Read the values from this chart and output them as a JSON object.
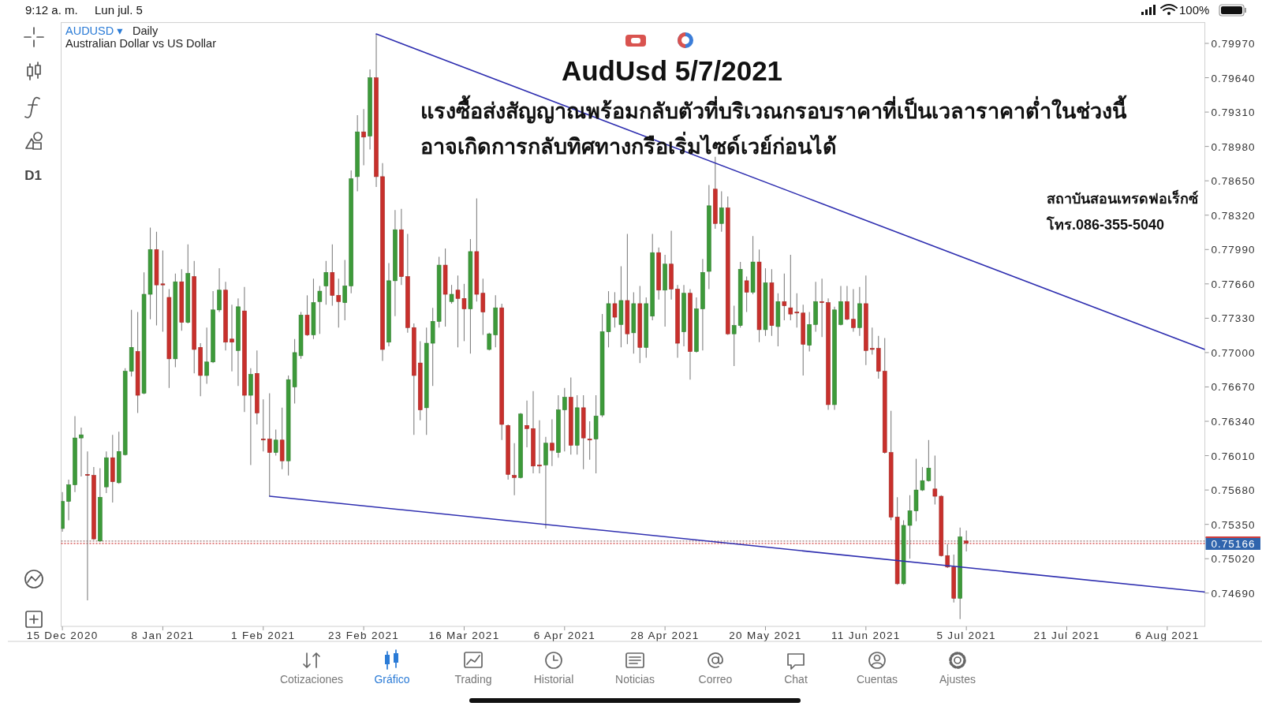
{
  "chart_data": {
    "type": "candlestick",
    "title": "AudUsd 5/7/2021",
    "subtitle": "แรงซื้อส่งสัญญาณพร้อมกลับตัวที่บริเวณกรอบราคาที่เป็นเวลาราคาต่ำในช่วงนี้\nอาจเกิดการกลับทิศทางกรือเริ่มไซด์เวย์ก่อนได้",
    "categories": [
      "15 Dec 2020",
      null,
      null,
      null,
      null,
      null,
      null,
      null,
      null,
      null,
      null,
      null,
      null,
      null,
      null,
      null,
      "8 Jan 2021",
      null,
      null,
      null,
      null,
      null,
      null,
      null,
      null,
      null,
      null,
      null,
      null,
      null,
      null,
      null,
      "1 Feb 2021",
      null,
      null,
      null,
      null,
      null,
      null,
      null,
      null,
      null,
      null,
      null,
      null,
      null,
      null,
      null,
      "23 Feb 2021",
      null,
      null,
      null,
      null,
      null,
      null,
      null,
      null,
      null,
      null,
      null,
      null,
      null,
      null,
      null,
      "16 Mar 2021",
      null,
      null,
      null,
      null,
      null,
      null,
      null,
      null,
      null,
      null,
      null,
      null,
      null,
      null,
      null,
      "6 Apr 2021",
      null,
      null,
      null,
      null,
      null,
      null,
      null,
      null,
      null,
      null,
      null,
      null,
      null,
      null,
      null,
      "28 Apr 2021",
      null,
      null,
      null,
      null,
      null,
      null,
      null,
      null,
      null,
      null,
      null,
      null,
      null,
      null,
      null,
      "20 May 2021",
      null,
      null,
      null,
      null,
      null,
      null,
      null,
      null,
      null,
      null,
      null,
      null,
      null,
      null,
      null,
      "11 Jun 2021",
      null,
      null,
      null,
      null,
      null,
      null,
      null,
      null,
      null,
      null,
      null,
      null,
      null,
      null,
      null,
      "5 Jul 2021",
      null,
      null,
      null,
      null,
      null,
      null,
      null,
      null,
      null,
      null,
      null,
      null,
      null,
      null,
      null,
      "21 Jul 2021",
      null,
      null,
      null,
      null,
      null,
      null,
      null,
      null,
      null,
      null,
      null,
      null,
      null,
      null,
      null,
      "6 Aug 2021",
      null,
      null,
      null,
      null,
      null,
      null
    ],
    "ohlc": [
      [
        0.7531,
        0.7566,
        0.7528,
        0.7557
      ],
      [
        0.7557,
        0.7578,
        0.7539,
        0.7573
      ],
      [
        0.7573,
        0.7639,
        0.7566,
        0.7618
      ],
      [
        0.7618,
        0.7628,
        0.7581,
        0.7621
      ],
      [
        0.7583,
        0.7605,
        0.7462,
        0.7582
      ],
      [
        0.7582,
        0.759,
        0.752,
        0.7521
      ],
      [
        0.7519,
        0.7589,
        0.7518,
        0.7561
      ],
      [
        0.7571,
        0.7605,
        0.7565,
        0.7599
      ],
      [
        0.7599,
        0.7621,
        0.7556,
        0.7576
      ],
      [
        0.7575,
        0.7624,
        0.7574,
        0.7605
      ],
      [
        0.7602,
        0.7685,
        0.7601,
        0.7682
      ],
      [
        0.7682,
        0.7741,
        0.7677,
        0.7705
      ],
      [
        0.7701,
        0.7739,
        0.7642,
        0.7659
      ],
      [
        0.7661,
        0.7777,
        0.766,
        0.7756
      ],
      [
        0.7756,
        0.782,
        0.7732,
        0.7799
      ],
      [
        0.7799,
        0.7816,
        0.7726,
        0.7765
      ],
      [
        0.7766,
        0.7798,
        0.772,
        0.7765
      ],
      [
        0.7753,
        0.7761,
        0.7666,
        0.7694
      ],
      [
        0.7694,
        0.7776,
        0.7686,
        0.7768
      ],
      [
        0.7768,
        0.778,
        0.7721,
        0.7729
      ],
      [
        0.7729,
        0.7804,
        0.7728,
        0.7776
      ],
      [
        0.7773,
        0.7788,
        0.768,
        0.7703
      ],
      [
        0.7705,
        0.7709,
        0.7658,
        0.7678
      ],
      [
        0.7678,
        0.7724,
        0.767,
        0.7691
      ],
      [
        0.7691,
        0.7759,
        0.769,
        0.7741
      ],
      [
        0.7741,
        0.7781,
        0.7739,
        0.776
      ],
      [
        0.776,
        0.7768,
        0.7702,
        0.771
      ],
      [
        0.7713,
        0.7746,
        0.7682,
        0.771
      ],
      [
        0.7702,
        0.7752,
        0.7668,
        0.7744
      ],
      [
        0.774,
        0.7763,
        0.7643,
        0.7659
      ],
      [
        0.7659,
        0.7685,
        0.7592,
        0.7679
      ],
      [
        0.768,
        0.7702,
        0.7631,
        0.7642
      ],
      [
        0.7617,
        0.7655,
        0.7605,
        0.7616
      ],
      [
        0.7617,
        0.7661,
        0.7562,
        0.7604
      ],
      [
        0.7604,
        0.7626,
        0.7601,
        0.7616
      ],
      [
        0.7616,
        0.7647,
        0.7588,
        0.7596
      ],
      [
        0.7596,
        0.7678,
        0.7582,
        0.7674
      ],
      [
        0.7667,
        0.7713,
        0.7651,
        0.77
      ],
      [
        0.7697,
        0.7739,
        0.7694,
        0.7736
      ],
      [
        0.7736,
        0.7755,
        0.7716,
        0.7717
      ],
      [
        0.7717,
        0.7771,
        0.7713,
        0.7748
      ],
      [
        0.7749,
        0.7764,
        0.7718,
        0.7759
      ],
      [
        0.7764,
        0.7788,
        0.7746,
        0.7777
      ],
      [
        0.7777,
        0.7804,
        0.7745,
        0.7755
      ],
      [
        0.7755,
        0.7771,
        0.7724,
        0.7749
      ],
      [
        0.7748,
        0.7789,
        0.7731,
        0.7764
      ],
      [
        0.7764,
        0.7875,
        0.7757,
        0.7867
      ],
      [
        0.7869,
        0.7928,
        0.7855,
        0.7912
      ],
      [
        0.7912,
        0.7934,
        0.788,
        0.7907
      ],
      [
        0.7908,
        0.7972,
        0.7895,
        0.7964
      ],
      [
        0.7964,
        0.8006,
        0.7859,
        0.7869
      ],
      [
        0.7869,
        0.7882,
        0.7692,
        0.7703
      ],
      [
        0.771,
        0.7786,
        0.7706,
        0.7769
      ],
      [
        0.7769,
        0.7837,
        0.7735,
        0.7818
      ],
      [
        0.7818,
        0.7838,
        0.7765,
        0.7773
      ],
      [
        0.7773,
        0.7814,
        0.7719,
        0.7724
      ],
      [
        0.7724,
        0.7728,
        0.7621,
        0.7678
      ],
      [
        0.769,
        0.7711,
        0.7635,
        0.7645
      ],
      [
        0.7647,
        0.7724,
        0.7621,
        0.7709
      ],
      [
        0.7709,
        0.7743,
        0.7668,
        0.773
      ],
      [
        0.773,
        0.7792,
        0.7724,
        0.7784
      ],
      [
        0.7784,
        0.78,
        0.7725,
        0.7756
      ],
      [
        0.7749,
        0.7765,
        0.7747,
        0.7756
      ],
      [
        0.776,
        0.7774,
        0.7705,
        0.7752
      ],
      [
        0.7752,
        0.7766,
        0.7711,
        0.7742
      ],
      [
        0.7742,
        0.7809,
        0.7699,
        0.7797
      ],
      [
        0.7797,
        0.7848,
        0.7749,
        0.7756
      ],
      [
        0.7757,
        0.7771,
        0.7717,
        0.7739
      ],
      [
        0.7703,
        0.7719,
        0.7702,
        0.7718
      ],
      [
        0.7717,
        0.7755,
        0.7705,
        0.7743
      ],
      [
        0.7743,
        0.7747,
        0.7616,
        0.7631
      ],
      [
        0.763,
        0.7631,
        0.7578,
        0.7583
      ],
      [
        0.7582,
        0.7613,
        0.7563,
        0.758
      ],
      [
        0.758,
        0.7642,
        0.7579,
        0.7641
      ],
      [
        0.763,
        0.7654,
        0.7609,
        0.7627
      ],
      [
        0.7627,
        0.7663,
        0.7584,
        0.7591
      ],
      [
        0.7592,
        0.7635,
        0.7584,
        0.7591
      ],
      [
        0.7592,
        0.7619,
        0.7531,
        0.7613
      ],
      [
        0.7613,
        0.7636,
        0.7591,
        0.7606
      ],
      [
        0.7604,
        0.7659,
        0.7599,
        0.7645
      ],
      [
        0.7645,
        0.7666,
        0.7605,
        0.7657
      ],
      [
        0.7657,
        0.7676,
        0.7602,
        0.7611
      ],
      [
        0.7611,
        0.7659,
        0.7602,
        0.7647
      ],
      [
        0.7647,
        0.7659,
        0.7588,
        0.7618
      ],
      [
        0.7617,
        0.7634,
        0.7597,
        0.7616
      ],
      [
        0.7617,
        0.7659,
        0.7584,
        0.7639
      ],
      [
        0.764,
        0.7737,
        0.7638,
        0.772
      ],
      [
        0.772,
        0.7759,
        0.7705,
        0.7747
      ],
      [
        0.7747,
        0.7758,
        0.7724,
        0.7734
      ],
      [
        0.7727,
        0.7783,
        0.7705,
        0.775
      ],
      [
        0.775,
        0.7814,
        0.7708,
        0.7718
      ],
      [
        0.7719,
        0.7758,
        0.7699,
        0.7747
      ],
      [
        0.7747,
        0.7764,
        0.769,
        0.7705
      ],
      [
        0.7705,
        0.7753,
        0.7695,
        0.7747
      ],
      [
        0.7735,
        0.7814,
        0.7731,
        0.7796
      ],
      [
        0.7796,
        0.7801,
        0.7751,
        0.776
      ],
      [
        0.776,
        0.7794,
        0.7725,
        0.7785
      ],
      [
        0.7785,
        0.7817,
        0.7751,
        0.7761
      ],
      [
        0.7761,
        0.7765,
        0.7695,
        0.7709
      ],
      [
        0.772,
        0.7765,
        0.7706,
        0.7757
      ],
      [
        0.7757,
        0.7761,
        0.7674,
        0.7701
      ],
      [
        0.7701,
        0.7753,
        0.77,
        0.7742
      ],
      [
        0.7742,
        0.779,
        0.7702,
        0.7777
      ],
      [
        0.7778,
        0.7861,
        0.7761,
        0.7841
      ],
      [
        0.7857,
        0.7888,
        0.7819,
        0.7824
      ],
      [
        0.7824,
        0.7855,
        0.7816,
        0.7839
      ],
      [
        0.7839,
        0.785,
        0.7717,
        0.7718
      ],
      [
        0.7718,
        0.7745,
        0.7687,
        0.7726
      ],
      [
        0.7726,
        0.7787,
        0.7724,
        0.778
      ],
      [
        0.7769,
        0.7773,
        0.7739,
        0.7758
      ],
      [
        0.7758,
        0.7812,
        0.7756,
        0.7787
      ],
      [
        0.7787,
        0.7799,
        0.771,
        0.7722
      ],
      [
        0.7722,
        0.7781,
        0.7716,
        0.7767
      ],
      [
        0.7767,
        0.778,
        0.7716,
        0.7726
      ],
      [
        0.7725,
        0.7757,
        0.7706,
        0.7749
      ],
      [
        0.7749,
        0.7776,
        0.7731,
        0.7745
      ],
      [
        0.7743,
        0.7794,
        0.7731,
        0.7737
      ],
      [
        0.7739,
        0.7757,
        0.7724,
        0.7738
      ],
      [
        0.7738,
        0.7746,
        0.7678,
        0.7708
      ],
      [
        0.7707,
        0.7739,
        0.7701,
        0.7727
      ],
      [
        0.7727,
        0.7768,
        0.772,
        0.7749
      ],
      [
        0.7749,
        0.7771,
        0.7715,
        0.7748
      ],
      [
        0.7748,
        0.7752,
        0.7645,
        0.765
      ],
      [
        0.765,
        0.7744,
        0.7645,
        0.7741
      ],
      [
        0.7727,
        0.7764,
        0.7726,
        0.7749
      ],
      [
        0.7749,
        0.7764,
        0.7731,
        0.7732
      ],
      [
        0.7732,
        0.7761,
        0.772,
        0.7724
      ],
      [
        0.7724,
        0.7763,
        0.7716,
        0.7747
      ],
      [
        0.7747,
        0.7774,
        0.7688,
        0.7702
      ],
      [
        0.7704,
        0.7724,
        0.7698,
        0.7703
      ],
      [
        0.7704,
        0.7716,
        0.7675,
        0.7682
      ],
      [
        0.7682,
        0.7714,
        0.7603,
        0.7604
      ],
      [
        0.7604,
        0.7644,
        0.7539,
        0.7542
      ],
      [
        0.7542,
        0.7561,
        0.7477,
        0.7478
      ],
      [
        0.7478,
        0.7539,
        0.7477,
        0.7534
      ],
      [
        0.7534,
        0.7563,
        0.7502,
        0.7548
      ],
      [
        0.7548,
        0.7598,
        0.7538,
        0.7568
      ],
      [
        0.7568,
        0.759,
        0.7567,
        0.7577
      ],
      [
        0.7577,
        0.7616,
        0.7576,
        0.7589
      ],
      [
        0.7569,
        0.7601,
        0.7554,
        0.7562
      ],
      [
        0.7562,
        0.7563,
        0.7504,
        0.7505
      ],
      [
        0.7505,
        0.7516,
        0.7493,
        0.7494
      ],
      [
        0.7494,
        0.7506,
        0.746,
        0.7464
      ],
      [
        0.7464,
        0.7532,
        0.7444,
        0.7523
      ],
      [
        0.7519,
        0.7529,
        0.7509,
        0.7517
      ],
      null,
      null,
      null,
      null,
      null,
      null,
      null,
      null,
      null,
      null,
      null,
      null,
      null,
      null,
      null,
      null,
      null,
      null,
      null,
      null,
      null,
      null,
      null,
      null,
      null,
      null,
      null,
      null,
      null,
      null,
      null,
      null,
      null,
      null,
      null,
      null,
      null,
      null
    ],
    "series": [
      {
        "type": "line",
        "color": "#2f2fb0",
        "values": [
          null,
          null,
          null,
          null,
          null,
          null,
          null,
          null,
          null,
          null,
          null,
          null,
          null,
          null,
          null,
          null,
          null,
          null,
          null,
          null,
          null,
          null,
          null,
          null,
          null,
          null,
          null,
          null,
          null,
          null,
          null,
          null,
          null,
          null,
          null,
          null,
          null,
          null,
          null,
          null,
          null,
          null,
          null,
          null,
          null,
          null,
          null,
          null,
          null,
          null,
          0.8006,
          null,
          null,
          null,
          null,
          null,
          null,
          null,
          null,
          null,
          null,
          null,
          null,
          null,
          null,
          null,
          null,
          null,
          null,
          null,
          null,
          null,
          null,
          null,
          null,
          null,
          null,
          null,
          null,
          null,
          null,
          null,
          null,
          null,
          null,
          null,
          null,
          null,
          null,
          null,
          null,
          null,
          null,
          null,
          null,
          null,
          null,
          null,
          null,
          null,
          null,
          null,
          null,
          null,
          null,
          null,
          null,
          null,
          null,
          null,
          null,
          null,
          null,
          null,
          null,
          null,
          null,
          null,
          null,
          null,
          null,
          null,
          null,
          null,
          null,
          null,
          null,
          null,
          null,
          null,
          null,
          null,
          null,
          null,
          null,
          null,
          null,
          null,
          null,
          null,
          null,
          null,
          null,
          null,
          null,
          null,
          null,
          null,
          null,
          null,
          null,
          null,
          null,
          null,
          null,
          null,
          null,
          null,
          null,
          null,
          null,
          null,
          null,
          null,
          null,
          null,
          null,
          null,
          null,
          null,
          null,
          null,
          null,
          null,
          null,
          null,
          null,
          null,
          null,
          null,
          null,
          null,
          0.7703
        ]
      },
      {
        "type": "line",
        "color": "#2f2fb0",
        "values": [
          null,
          null,
          null,
          null,
          null,
          null,
          null,
          null,
          null,
          null,
          null,
          null,
          null,
          null,
          null,
          null,
          null,
          null,
          null,
          null,
          null,
          null,
          null,
          null,
          null,
          null,
          null,
          null,
          null,
          null,
          null,
          null,
          null,
          0.7562,
          null,
          null,
          null,
          null,
          null,
          null,
          null,
          null,
          null,
          null,
          null,
          null,
          null,
          null,
          null,
          null,
          null,
          null,
          null,
          null,
          null,
          null,
          null,
          null,
          null,
          null,
          null,
          null,
          null,
          null,
          null,
          null,
          null,
          null,
          null,
          null,
          null,
          null,
          null,
          null,
          null,
          null,
          null,
          null,
          null,
          null,
          null,
          null,
          null,
          null,
          null,
          null,
          null,
          null,
          null,
          null,
          null,
          null,
          null,
          null,
          null,
          null,
          null,
          null,
          null,
          null,
          null,
          null,
          null,
          null,
          null,
          null,
          null,
          null,
          null,
          null,
          null,
          null,
          null,
          null,
          null,
          null,
          null,
          null,
          null,
          null,
          null,
          null,
          null,
          null,
          null,
          null,
          null,
          null,
          null,
          null,
          null,
          null,
          null,
          null,
          null,
          null,
          null,
          null,
          null,
          null,
          null,
          null,
          null,
          null,
          null,
          null,
          null,
          null,
          null,
          null,
          null,
          null,
          null,
          null,
          null,
          null,
          null,
          null,
          null,
          null,
          null,
          null,
          null,
          null,
          null,
          null,
          null,
          null,
          null,
          null,
          null,
          null,
          null,
          null,
          null,
          null,
          null,
          null,
          null,
          null,
          null,
          null,
          0.747
        ]
      }
    ],
    "ylim": [
      0.7437,
      0.8017
    ],
    "yticks": [
      {
        "value": 0.7997,
        "label": "0.79970"
      },
      {
        "value": 0.7964,
        "label": "0.79640"
      },
      {
        "value": 0.7931,
        "label": "0.79310"
      },
      {
        "value": 0.7898,
        "label": "0.78980"
      },
      {
        "value": 0.7865,
        "label": "0.78650"
      },
      {
        "value": 0.7832,
        "label": "0.78320"
      },
      {
        "value": 0.7799,
        "label": "0.77990"
      },
      {
        "value": 0.7766,
        "label": "0.77660"
      },
      {
        "value": 0.7733,
        "label": "0.77330"
      },
      {
        "value": 0.77,
        "label": "0.77000"
      },
      {
        "value": 0.7667,
        "label": "0.76670"
      },
      {
        "value": 0.7634,
        "label": "0.76340"
      },
      {
        "value": 0.7601,
        "label": "0.76010"
      },
      {
        "value": 0.7568,
        "label": "0.75680"
      },
      {
        "value": 0.7535,
        "label": "0.75350"
      },
      {
        "value": 0.7502,
        "label": "0.75020"
      },
      {
        "value": 0.7469,
        "label": "0.74690"
      }
    ],
    "ref_lines": [
      {
        "axis": "y",
        "value": 0.75166,
        "label": "0.75166",
        "color": "#d03c3c",
        "line_style": "dotted"
      },
      {
        "axis": "y",
        "value": 0.7519,
        "color": "#9a7474",
        "line_style": "dotted"
      }
    ],
    "annotations": [
      "AUDUSD ▾",
      "Daily",
      "Australian Dollar vs US Dollar",
      "สถาบันสอนเทรดฟอเร็กซ์",
      "โทร.086-355-5040",
      "D1",
      "9:12 a. m.",
      "Lun jul. 5",
      "100%",
      "Cotizaciones",
      "Gráfico",
      "Trading",
      "Historial",
      "Noticias",
      "Correo",
      "Chat",
      "Cuentas",
      "Ajustes"
    ]
  }
}
